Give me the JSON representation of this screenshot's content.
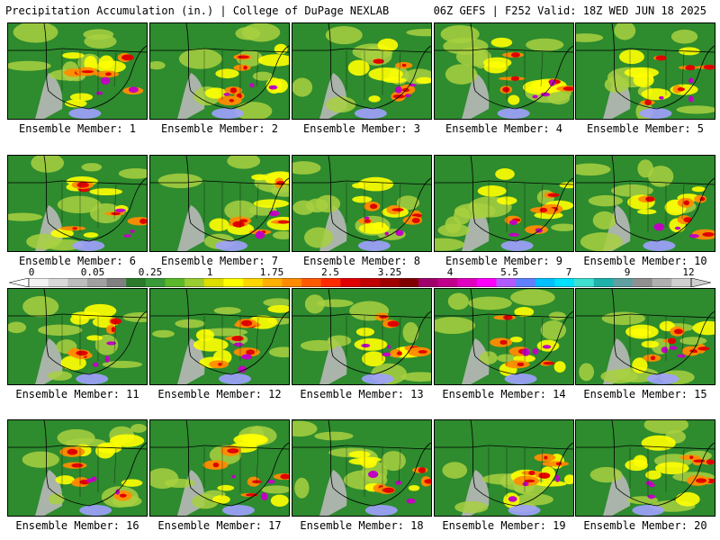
{
  "header": {
    "title": "Precipitation Accumulation (in.) | College of DuPage NEXLAB",
    "run_info": "06Z GEFS | F252 Valid: 18Z WED JUN 18 2025"
  },
  "members": [
    "Ensemble Member: 1",
    "Ensemble Member: 2",
    "Ensemble Member: 3",
    "Ensemble Member: 4",
    "Ensemble Member: 5",
    "Ensemble Member: 6",
    "Ensemble Member: 7",
    "Ensemble Member: 8",
    "Ensemble Member: 9",
    "Ensemble Member: 10",
    "Ensemble Member: 11",
    "Ensemble Member: 12",
    "Ensemble Member: 13",
    "Ensemble Member: 14",
    "Ensemble Member: 15",
    "Ensemble Member: 16",
    "Ensemble Member: 17",
    "Ensemble Member: 18",
    "Ensemble Member: 19",
    "Ensemble Member: 20"
  ],
  "colorbar": {
    "tick_labels": [
      "0",
      "0.05",
      "0.25",
      "1",
      "1.75",
      "2.5",
      "3.25",
      "4",
      "5.5",
      "7",
      "9",
      "12"
    ],
    "colors": [
      "#f2f2f2",
      "#d9d9d9",
      "#bdbdbd",
      "#a0a0a0",
      "#808080",
      "#2a7a2a",
      "#3a9a3a",
      "#5ab82a",
      "#9acd32",
      "#dede00",
      "#ffff00",
      "#ffd700",
      "#ffb000",
      "#ff8c00",
      "#ff5a00",
      "#ff2a00",
      "#e00000",
      "#c00000",
      "#a00000",
      "#800000",
      "#a0006a",
      "#c0008a",
      "#e000c0",
      "#ff00ff",
      "#b05aff",
      "#6080ff",
      "#00c0ff",
      "#00e0ff",
      "#40e0d0",
      "#20b2aa",
      "#60a0a0",
      "#909090",
      "#b0b0b0",
      "#d0d0d0"
    ]
  },
  "map_colors": {
    "dry": "#2e8b2e",
    "desert": "#b8b8b8",
    "light": "#a8d040",
    "moderate": "#ffff00",
    "heavy": "#ff8c00",
    "very_heavy": "#e00000",
    "extreme": "#c000c0",
    "tropical": "#a0a0ff",
    "border": "#000000"
  }
}
